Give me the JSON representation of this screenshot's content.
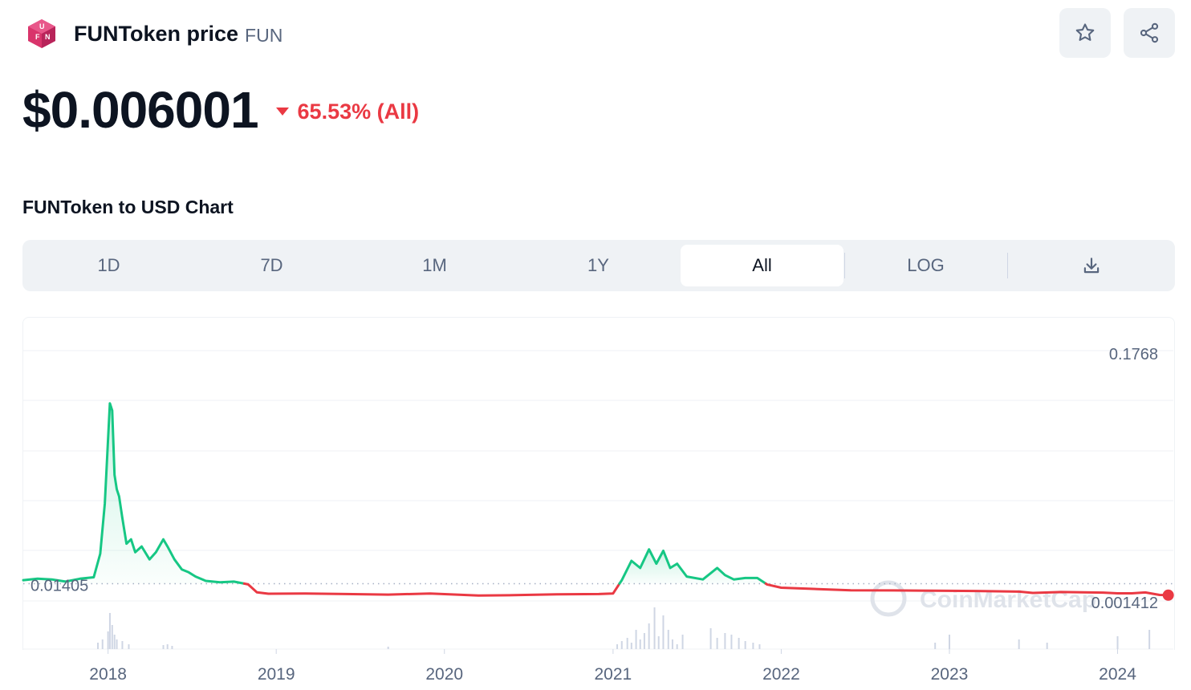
{
  "header": {
    "name": "FUNToken price",
    "symbol": "FUN",
    "logo_letters": [
      "F",
      "U",
      "N"
    ]
  },
  "actions": {
    "star_icon": "star-icon",
    "share_icon": "share-icon"
  },
  "price": {
    "value": "$0.006001",
    "change": "65.53% (All)",
    "direction": "down"
  },
  "chart_section": {
    "title": "FUNToken to USD Chart"
  },
  "tabs": {
    "items": [
      {
        "label": "1D"
      },
      {
        "label": "7D"
      },
      {
        "label": "1M"
      },
      {
        "label": "1Y"
      },
      {
        "label": "All",
        "active": true
      },
      {
        "label": "LOG"
      }
    ],
    "download_icon": "download-icon"
  },
  "colors": {
    "up": "#16c784",
    "down": "#ea3943",
    "text": "#0d1421",
    "muted": "#58667e",
    "tab_bg": "#eff2f5",
    "logo": "#d9346b"
  },
  "chart_data": {
    "type": "line",
    "title": "FUNToken to USD Chart",
    "y_axis_labels": [
      "0.1768",
      "0.001412"
    ],
    "reference_line": {
      "value": 0.01405,
      "label": "0.01405",
      "style": "dotted"
    },
    "watermark": "CoinMarketCap",
    "x_ticks": [
      "2018",
      "2019",
      "2020",
      "2021",
      "2022",
      "2023",
      "2024"
    ],
    "xlim": [
      "2017-07-01",
      "2024-05-01"
    ],
    "ylim": [
      0.001412,
      0.1768
    ],
    "grid": true,
    "series": [
      {
        "x": [
          "2017-07-01",
          "2017-08-01",
          "2017-09-01",
          "2017-10-01",
          "2017-11-01",
          "2017-12-01",
          "2017-12-15",
          "2017-12-25",
          "2018-01-05",
          "2018-01-10",
          "2018-01-15",
          "2018-01-20",
          "2018-01-25",
          "2018-02-01",
          "2018-02-10",
          "2018-02-20",
          "2018-03-01",
          "2018-03-15",
          "2018-04-01",
          "2018-04-15",
          "2018-05-01",
          "2018-05-10",
          "2018-05-25",
          "2018-06-10",
          "2018-06-25",
          "2018-07-10",
          "2018-08-01",
          "2018-09-01",
          "2018-10-01",
          "2018-11-01",
          "2018-11-20",
          "2018-12-15",
          "2019-03-01",
          "2019-06-01",
          "2019-09-01",
          "2019-12-01",
          "2020-03-15",
          "2020-06-01",
          "2020-09-01",
          "2020-12-01",
          "2021-01-01",
          "2021-01-20",
          "2021-02-10",
          "2021-03-01",
          "2021-03-20",
          "2021-04-05",
          "2021-04-20",
          "2021-05-05",
          "2021-05-20",
          "2021-06-10",
          "2021-07-15",
          "2021-08-15",
          "2021-09-01",
          "2021-09-20",
          "2021-10-15",
          "2021-11-10",
          "2021-12-01",
          "2022-01-01",
          "2022-03-01",
          "2022-06-01",
          "2022-09-01",
          "2022-12-01",
          "2023-03-01",
          "2023-06-01",
          "2023-07-01",
          "2023-09-01",
          "2023-12-01",
          "2024-01-01",
          "2024-02-01",
          "2024-03-01",
          "2024-04-01",
          "2024-04-20"
        ],
        "y": [
          0.0165,
          0.0175,
          0.017,
          0.0155,
          0.0175,
          0.0185,
          0.035,
          0.07,
          0.14,
          0.135,
          0.09,
          0.08,
          0.075,
          0.06,
          0.042,
          0.045,
          0.036,
          0.04,
          0.031,
          0.036,
          0.045,
          0.04,
          0.031,
          0.024,
          0.022,
          0.019,
          0.016,
          0.015,
          0.0155,
          0.0135,
          0.008,
          0.007,
          0.0072,
          0.0068,
          0.0064,
          0.0072,
          0.0058,
          0.006,
          0.0066,
          0.0068,
          0.0072,
          0.0165,
          0.03,
          0.025,
          0.038,
          0.028,
          0.037,
          0.025,
          0.028,
          0.019,
          0.017,
          0.025,
          0.02,
          0.017,
          0.018,
          0.018,
          0.0135,
          0.0112,
          0.0105,
          0.0094,
          0.0093,
          0.0091,
          0.0089,
          0.0085,
          0.0076,
          0.0082,
          0.0078,
          0.0073,
          0.0073,
          0.0079,
          0.0062,
          0.006001
        ]
      }
    ],
    "volume_x": [
      "2017-12-10",
      "2017-12-20",
      "2018-01-01",
      "2018-01-05",
      "2018-01-10",
      "2018-01-15",
      "2018-01-20",
      "2018-02-01",
      "2018-02-15",
      "2018-05-01",
      "2018-05-10",
      "2018-05-20",
      "2019-09-01",
      "2021-01-10",
      "2021-01-20",
      "2021-02-01",
      "2021-02-10",
      "2021-02-20",
      "2021-03-01",
      "2021-03-10",
      "2021-03-20",
      "2021-04-01",
      "2021-04-10",
      "2021-04-20",
      "2021-05-01",
      "2021-05-10",
      "2021-05-20",
      "2021-06-01",
      "2021-08-01",
      "2021-08-15",
      "2021-09-01",
      "2021-09-15",
      "2021-10-01",
      "2021-10-15",
      "2021-11-01",
      "2021-11-15",
      "2022-12-01",
      "2023-01-01",
      "2023-06-01",
      "2023-08-01",
      "2024-01-01",
      "2024-03-10"
    ],
    "volume": [
      8,
      12,
      22,
      45,
      30,
      18,
      12,
      10,
      6,
      5,
      6,
      4,
      3,
      6,
      10,
      14,
      8,
      24,
      12,
      20,
      32,
      52,
      16,
      42,
      24,
      12,
      6,
      18,
      26,
      14,
      20,
      18,
      14,
      10,
      8,
      6,
      8,
      18,
      12,
      8,
      16,
      24
    ]
  }
}
